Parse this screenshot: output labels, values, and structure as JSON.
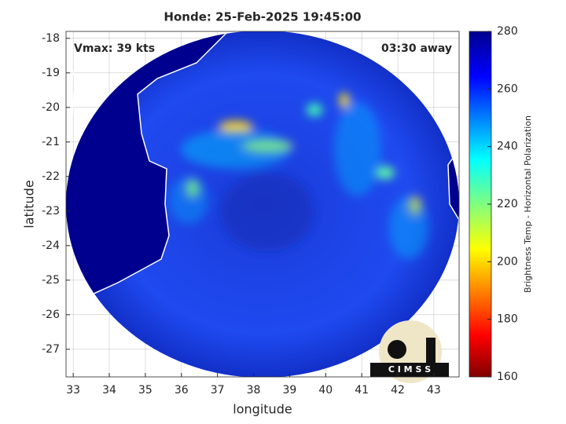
{
  "chart_data": {
    "type": "map",
    "title": "Honde: 25-Feb-2025 19:45:00",
    "annotations": [
      "Vmax: 39 kts",
      "03:30 away"
    ],
    "xlabel": "longitude",
    "ylabel": "latitude",
    "xlim": [
      32.8,
      43.7
    ],
    "ylim": [
      -27.8,
      -17.8
    ],
    "xticks": [
      33,
      34,
      35,
      36,
      37,
      38,
      39,
      40,
      41,
      42,
      43
    ],
    "yticks": [
      -18,
      -19,
      -20,
      -21,
      -22,
      -23,
      -24,
      -25,
      -26,
      -27
    ],
    "grid": true,
    "colorbar": {
      "label": "Brightness Temp - Horizontal Polarization",
      "lim": [
        160,
        280
      ],
      "ticks": [
        160,
        180,
        200,
        220,
        240,
        260,
        280
      ],
      "colormap": "jet"
    },
    "logo": "C I M S S"
  }
}
